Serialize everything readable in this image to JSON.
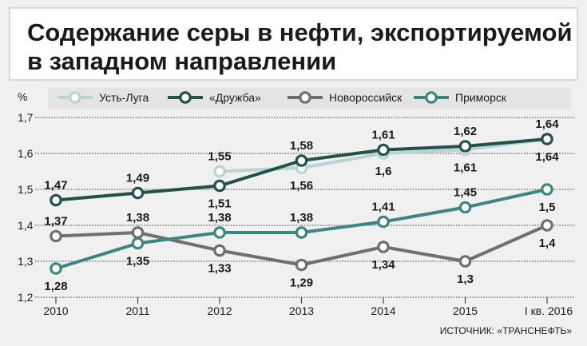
{
  "chart_data": {
    "type": "line",
    "title": [
      "Содержание серы в нефти, экспортируемой",
      "в западном направлении"
    ],
    "ylabel": "%",
    "ylim": [
      1.2,
      1.7
    ],
    "yticks": [
      "1,2",
      "1,3",
      "1,4",
      "1,5",
      "1,6",
      "1,7"
    ],
    "categories": [
      "2010",
      "2011",
      "2012",
      "2013",
      "2014",
      "2015",
      "I кв. 2016"
    ],
    "series": [
      {
        "name": "Усть-Луга",
        "color": "#b9d4cf",
        "values": [
          null,
          null,
          1.55,
          1.56,
          1.6,
          1.61,
          1.64
        ],
        "labels": [
          null,
          null,
          "1,55",
          "1,56",
          "1,6",
          "1,61",
          "1,64"
        ]
      },
      {
        "name": "«Дружба»",
        "color": "#22514c",
        "values": [
          1.47,
          1.49,
          1.51,
          1.58,
          1.61,
          1.62,
          1.64
        ],
        "labels": [
          "1,47",
          "1,49",
          "1,51",
          "1,58",
          "1,61",
          "1,62",
          "1,64"
        ]
      },
      {
        "name": "Новороссийск",
        "color": "#6f6f6f",
        "values": [
          1.37,
          1.38,
          1.33,
          1.29,
          1.34,
          1.3,
          1.4
        ],
        "labels": [
          "1,37",
          "1,38",
          "1,33",
          "1,29",
          "1,34",
          "1,3",
          "1,4"
        ]
      },
      {
        "name": "Приморск",
        "color": "#3d8680",
        "values": [
          1.28,
          1.35,
          1.38,
          1.38,
          1.41,
          1.45,
          1.5
        ],
        "labels": [
          "1,28",
          "1,35",
          "1,38",
          "1,38",
          "1,41",
          "1,45",
          "1,5"
        ]
      }
    ],
    "source": "ИСТОЧНИК: «ТРАНСНЕФТЬ»"
  }
}
